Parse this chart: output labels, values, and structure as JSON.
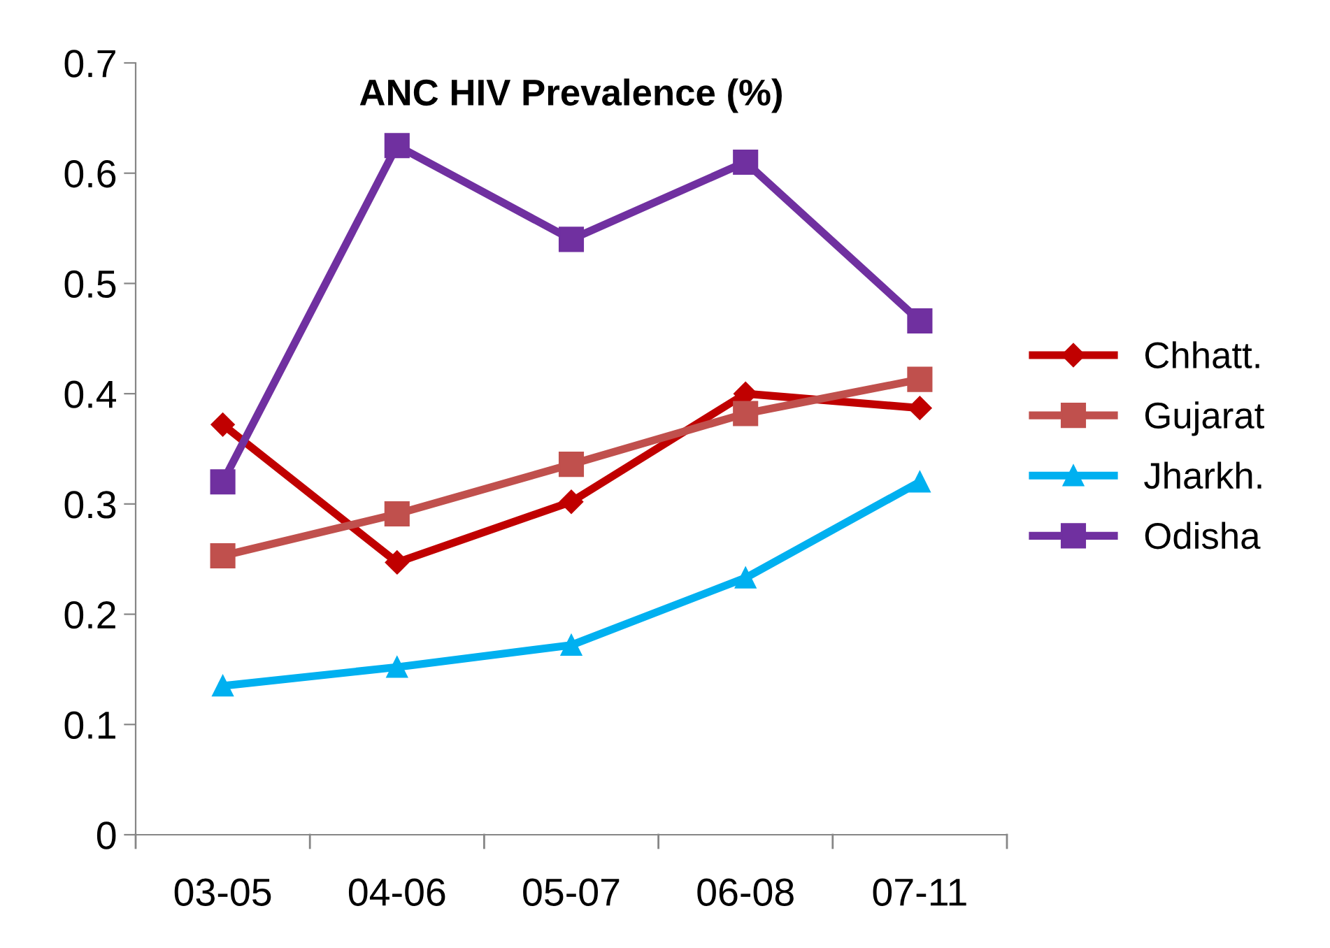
{
  "chart_data": {
    "type": "line",
    "title": "ANC HIV Prevalence (%)",
    "categories": [
      "03-05",
      "04-06",
      "05-07",
      "06-08",
      "07-11"
    ],
    "series": [
      {
        "name": "Chhatt.",
        "color": "#c00000",
        "marker": "diamond",
        "values": [
          0.372,
          0.247,
          0.302,
          0.4,
          0.387
        ]
      },
      {
        "name": "Gujarat",
        "color": "#c0504d",
        "marker": "square",
        "values": [
          0.253,
          0.291,
          0.336,
          0.382,
          0.413
        ]
      },
      {
        "name": "Jharkh.",
        "color": "#00b0f0",
        "marker": "triangle",
        "values": [
          0.135,
          0.152,
          0.172,
          0.233,
          0.32
        ]
      },
      {
        "name": "Odisha",
        "color": "#7030a0",
        "marker": "square",
        "values": [
          0.32,
          0.625,
          0.54,
          0.61,
          0.466
        ]
      }
    ],
    "ylim": [
      0,
      0.7
    ],
    "yticks": [
      0,
      0.1,
      0.2,
      0.3,
      0.4,
      0.5,
      0.6,
      0.7
    ],
    "grid": false,
    "legend": "right",
    "line_style": "solid"
  }
}
